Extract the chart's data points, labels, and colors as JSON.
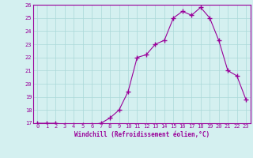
{
  "x": [
    0,
    1,
    2,
    3,
    4,
    5,
    6,
    7,
    8,
    9,
    10,
    11,
    12,
    13,
    14,
    15,
    16,
    17,
    18,
    19,
    20,
    21,
    22,
    23
  ],
  "y": [
    17.0,
    17.0,
    17.0,
    16.9,
    16.9,
    16.9,
    16.9,
    17.0,
    17.4,
    18.0,
    19.4,
    22.0,
    22.2,
    23.0,
    23.3,
    25.0,
    25.5,
    25.2,
    25.8,
    25.0,
    23.3,
    21.0,
    20.6,
    18.8
  ],
  "ylim": [
    17,
    26
  ],
  "yticks": [
    17,
    18,
    19,
    20,
    21,
    22,
    23,
    24,
    25,
    26
  ],
  "xticks": [
    0,
    1,
    2,
    3,
    4,
    5,
    6,
    7,
    8,
    9,
    10,
    11,
    12,
    13,
    14,
    15,
    16,
    17,
    18,
    19,
    20,
    21,
    22,
    23
  ],
  "xlabel": "Windchill (Refroidissement éolien,°C)",
  "line_color": "#990099",
  "marker_color": "#990099",
  "bg_color": "#d4f0f0",
  "grid_color": "#aad8d8",
  "spine_color": "#990099"
}
